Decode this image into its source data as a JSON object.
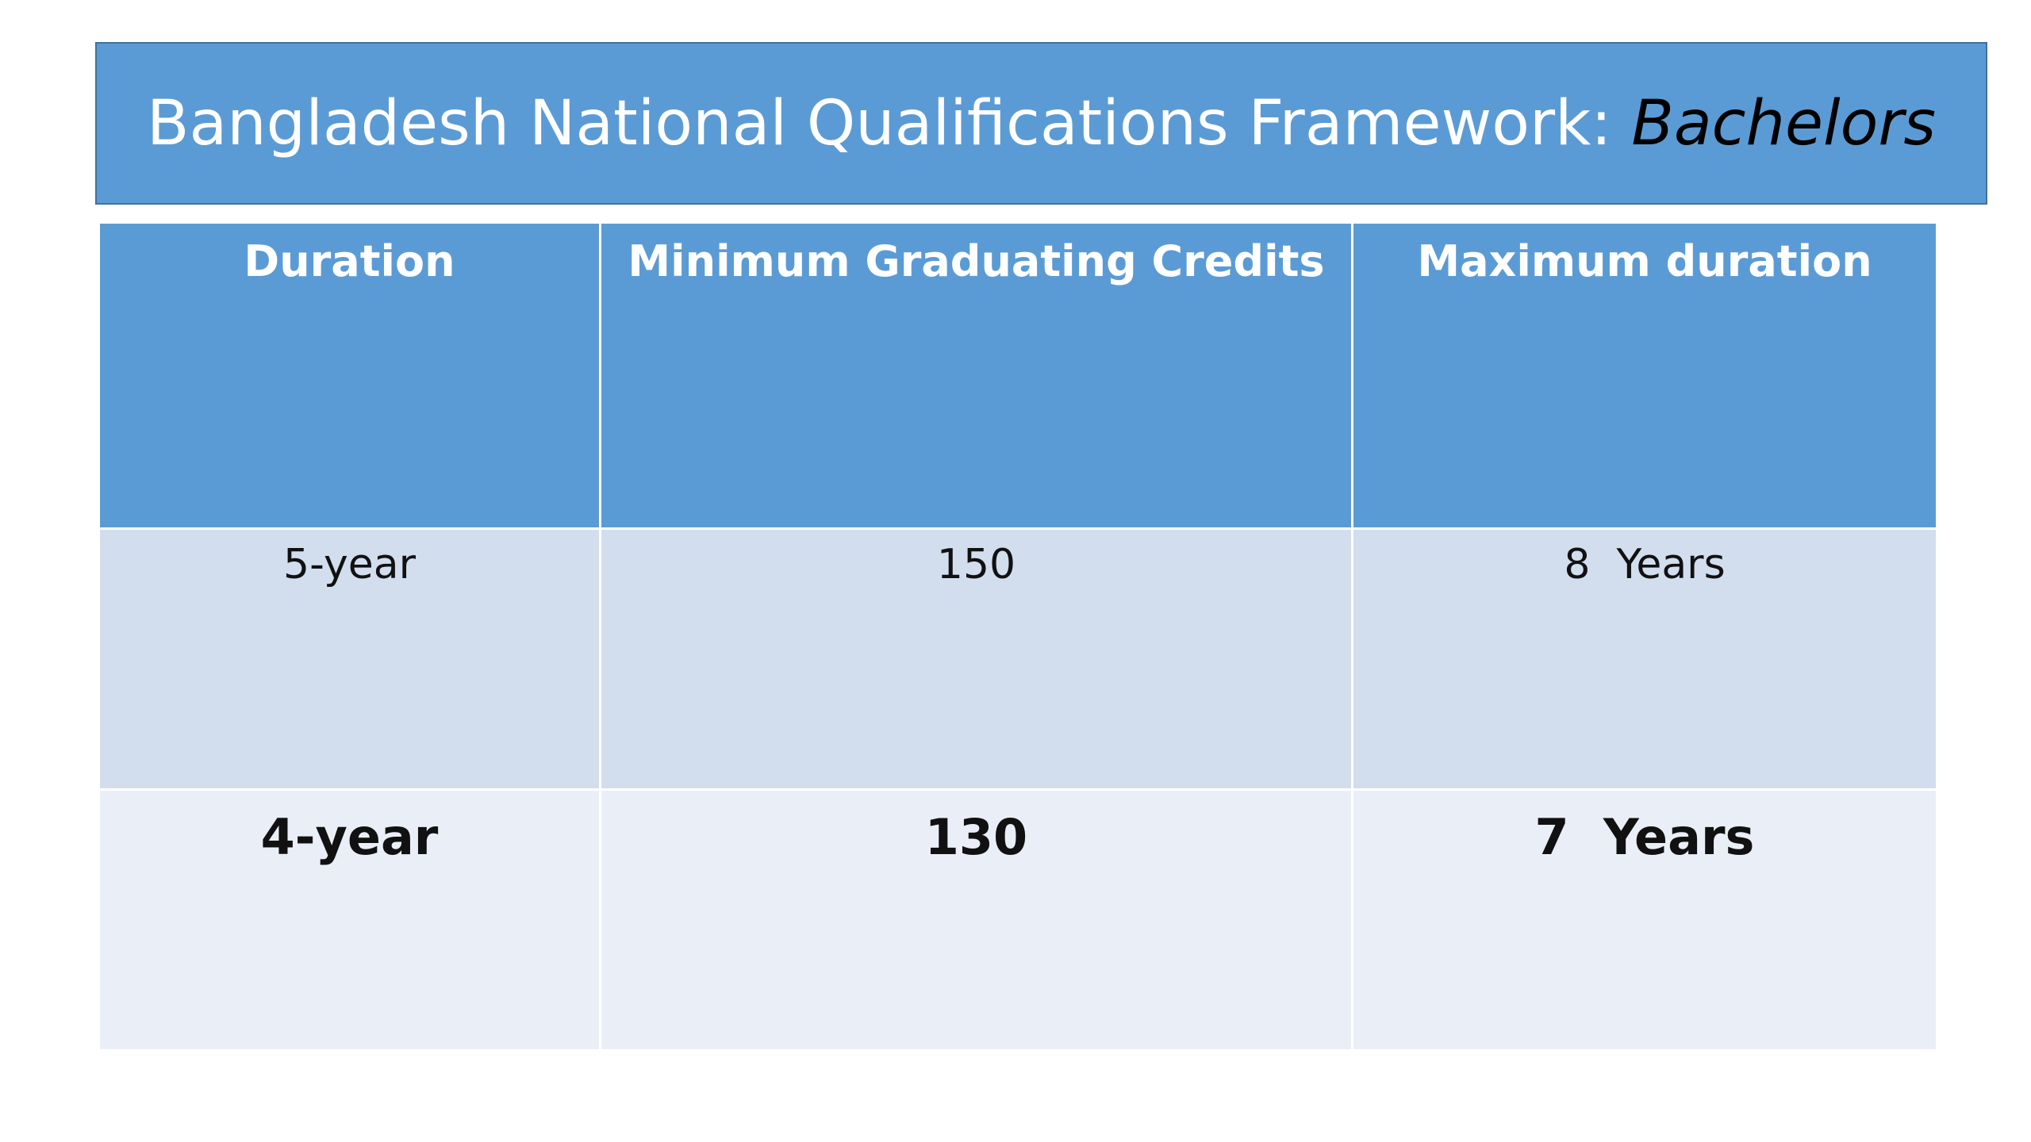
{
  "title": {
    "text": "Bangladesh National Qualifications Framework: ",
    "emphasis": "Bachelors"
  },
  "table": {
    "header": [
      "Duration",
      "Minimum Graduating Credits",
      "Maximum duration"
    ],
    "rows": [
      [
        "5-year",
        "150",
        "8  Years"
      ],
      [
        "4-year",
        "130",
        "7  Years"
      ]
    ]
  }
}
